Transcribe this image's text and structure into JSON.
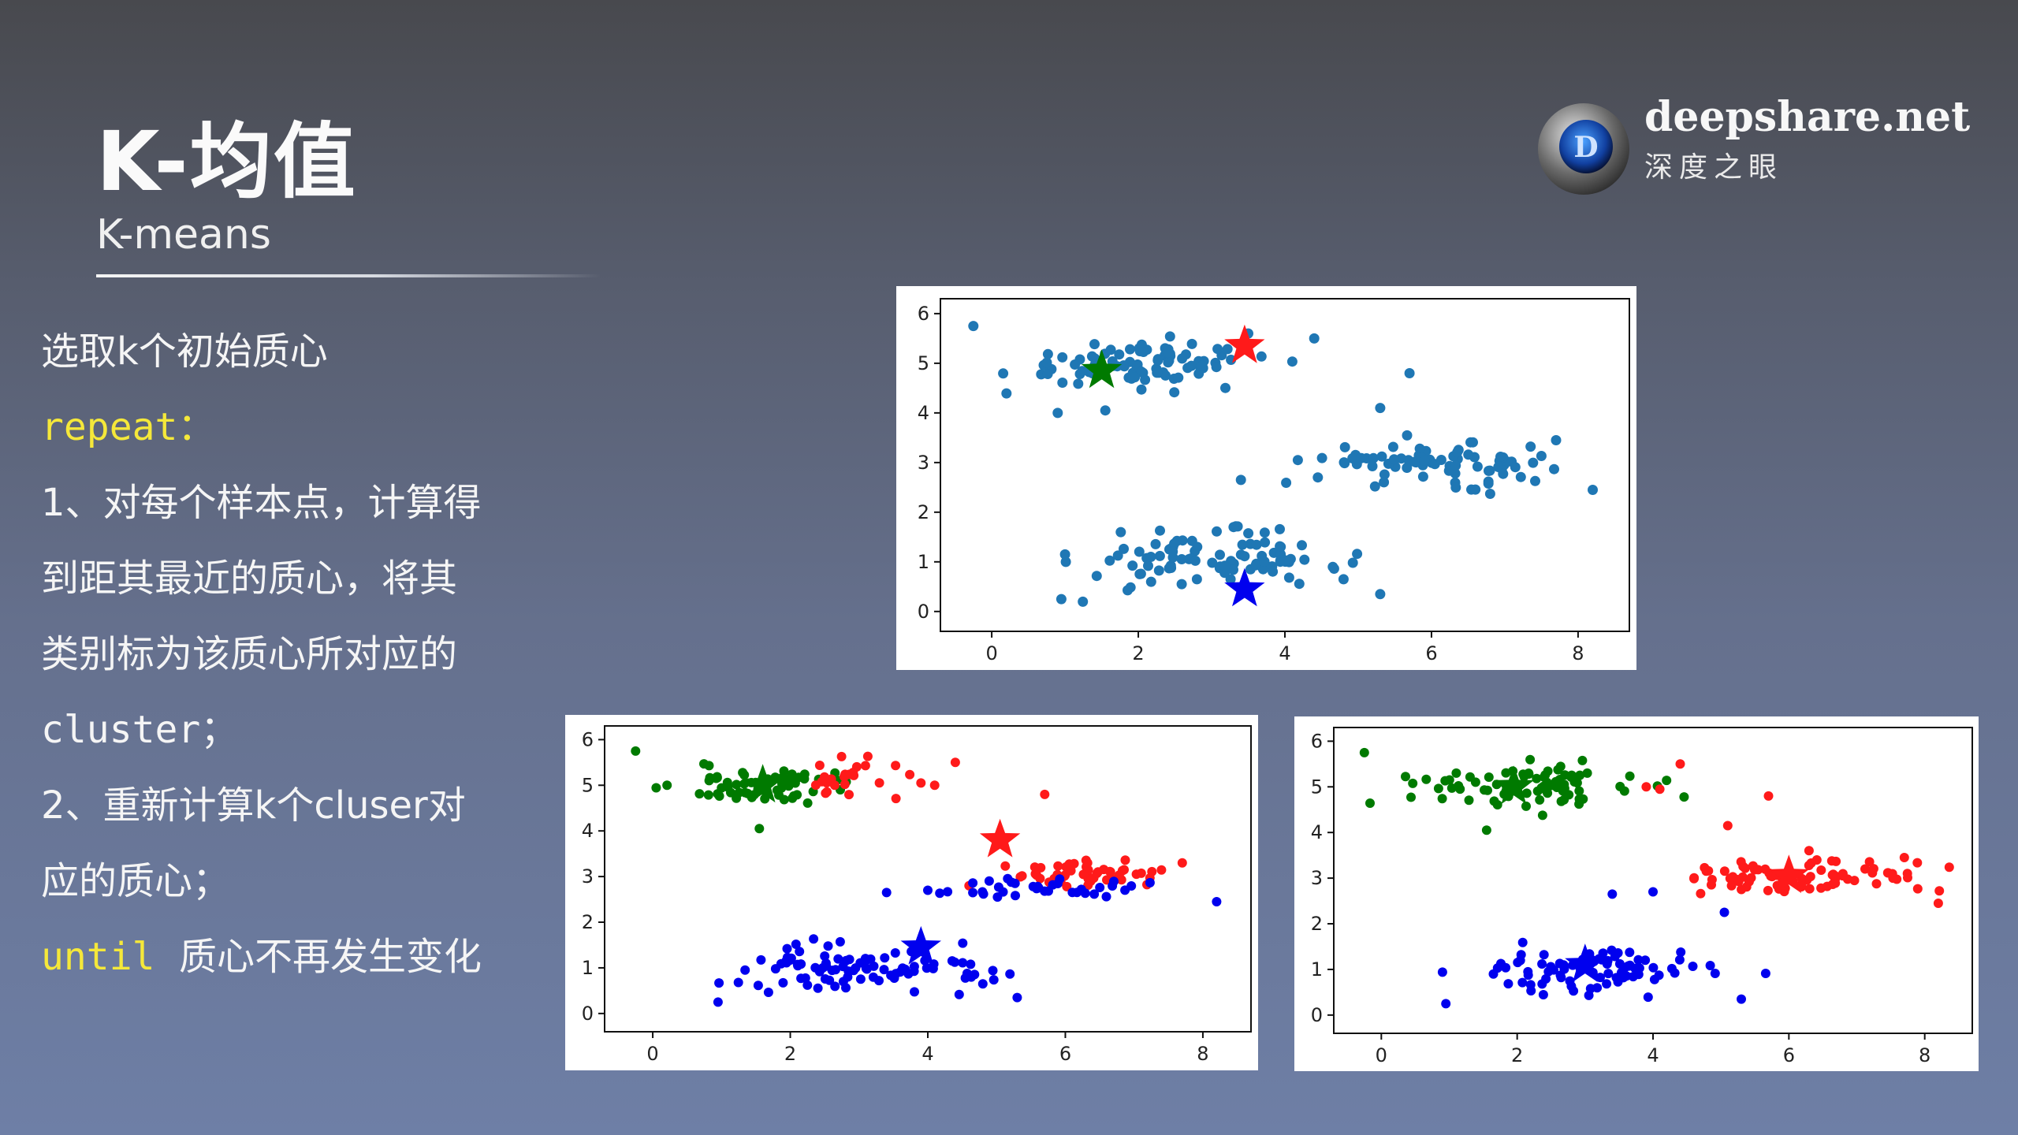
{
  "header": {
    "title": "K-均值",
    "subtitle": "K-means"
  },
  "logo": {
    "site": "deepshare.net",
    "tagline": "深度之眼"
  },
  "algorithm": {
    "step0": "选取k个初始质心",
    "repeat_kw": "repeat",
    "repeat_colon": "：",
    "step1_a": "1、对每个样本点，计算得",
    "step1_b": "到距其最近的质心，将其",
    "step1_c": "类别标为该质心所对应的",
    "step1_d": "cluster；",
    "step2_a": "2、重新计算k个cluser对",
    "step2_b": "应的质心；",
    "until_kw": "until",
    "until_text": "质心不再发生变化"
  },
  "colors": {
    "unassigned": "#1f77b4",
    "cluster_green": "#007a00",
    "cluster_red": "#ff1a1a",
    "cluster_blue": "#0000ee"
  },
  "chart_data": [
    {
      "id": "init",
      "type": "scatter",
      "description_role": "initial centroids",
      "xlim": [
        -0.7,
        8.7
      ],
      "ylim": [
        -0.4,
        6.3
      ],
      "xticks": [
        "0",
        "2",
        "4",
        "6",
        "8"
      ],
      "yticks": [
        "0",
        "1",
        "2",
        "3",
        "4",
        "5",
        "6"
      ],
      "clusters": [
        {
          "color": "unassigned",
          "center": [
            2.0,
            5.0
          ],
          "spread": [
            0.9,
            0.22
          ],
          "n": 90,
          "outliers": [
            [
              -0.25,
              5.75
            ],
            [
              0.9,
              4.0
            ],
            [
              1.55,
              4.05
            ],
            [
              4.4,
              5.5
            ],
            [
              5.7,
              4.8
            ],
            [
              3.5,
              5.6
            ]
          ]
        },
        {
          "color": "unassigned",
          "center": [
            6.1,
            3.0
          ],
          "spread": [
            0.8,
            0.2
          ],
          "n": 80,
          "outliers": [
            [
              3.4,
              2.65
            ],
            [
              8.2,
              2.45
            ],
            [
              5.3,
              4.1
            ],
            [
              7.7,
              3.45
            ],
            [
              4.45,
              2.7
            ]
          ]
        },
        {
          "color": "unassigned",
          "center": [
            3.0,
            1.0
          ],
          "spread": [
            0.9,
            0.28
          ],
          "n": 90,
          "outliers": [
            [
              0.95,
              0.25
            ],
            [
              5.3,
              0.35
            ],
            [
              4.8,
              0.65
            ],
            [
              1.0,
              1.15
            ],
            [
              3.3,
              1.7
            ]
          ]
        }
      ],
      "centroids": [
        {
          "color": "cluster_red",
          "x": 3.45,
          "y": 5.35
        },
        {
          "color": "cluster_green",
          "x": 1.5,
          "y": 4.85
        },
        {
          "color": "cluster_blue",
          "x": 3.45,
          "y": 0.45
        }
      ]
    },
    {
      "id": "iter1",
      "type": "scatter",
      "description_role": "after first assignment",
      "xlim": [
        -0.7,
        8.7
      ],
      "ylim": [
        -0.4,
        6.3
      ],
      "xticks": [
        "0",
        "2",
        "4",
        "6",
        "8"
      ],
      "yticks": [
        "0",
        "1",
        "2",
        "3",
        "4",
        "5",
        "6"
      ],
      "clusters": [
        {
          "color": "cluster_green",
          "center": [
            1.6,
            5.0
          ],
          "spread": [
            0.65,
            0.22
          ],
          "n": 70,
          "outliers": [
            [
              -0.25,
              5.75
            ],
            [
              1.55,
              4.05
            ]
          ]
        },
        {
          "color": "cluster_red",
          "center": [
            2.9,
            5.1
          ],
          "spread": [
            0.35,
            0.2
          ],
          "n": 25,
          "outliers": [
            [
              4.4,
              5.5
            ],
            [
              5.7,
              4.8
            ],
            [
              3.9,
              5.05
            ],
            [
              4.1,
              5.0
            ]
          ]
        },
        {
          "color": "cluster_red",
          "center": [
            6.4,
            3.05
          ],
          "spread": [
            0.55,
            0.15
          ],
          "n": 50,
          "outliers": [
            [
              4.6,
              2.8
            ],
            [
              7.7,
              3.3
            ]
          ]
        },
        {
          "color": "cluster_blue",
          "center": [
            5.9,
            2.75
          ],
          "spread": [
            0.7,
            0.12
          ],
          "n": 35,
          "outliers": [
            [
              3.4,
              2.65
            ],
            [
              8.2,
              2.45
            ],
            [
              4.0,
              2.7
            ]
          ]
        },
        {
          "color": "cluster_blue",
          "center": [
            3.0,
            1.0
          ],
          "spread": [
            0.9,
            0.28
          ],
          "n": 90,
          "outliers": [
            [
              0.95,
              0.25
            ],
            [
              5.3,
              0.35
            ],
            [
              4.8,
              0.65
            ]
          ]
        }
      ],
      "centroids": [
        {
          "color": "cluster_red",
          "x": 5.05,
          "y": 3.8
        },
        {
          "color": "cluster_green",
          "x": 1.6,
          "y": 5.0
        },
        {
          "color": "cluster_blue",
          "x": 3.9,
          "y": 1.45
        }
      ]
    },
    {
      "id": "final",
      "type": "scatter",
      "description_role": "converged",
      "xlim": [
        -0.7,
        8.7
      ],
      "ylim": [
        -0.4,
        6.3
      ],
      "xticks": [
        "0",
        "2",
        "4",
        "6",
        "8"
      ],
      "yticks": [
        "0",
        "1",
        "2",
        "3",
        "4",
        "5",
        "6"
      ],
      "clusters": [
        {
          "color": "cluster_green",
          "center": [
            2.0,
            5.0
          ],
          "spread": [
            0.85,
            0.22
          ],
          "n": 85,
          "outliers": [
            [
              -0.25,
              5.75
            ],
            [
              1.55,
              4.05
            ]
          ]
        },
        {
          "color": "cluster_red",
          "center": [
            6.1,
            3.0
          ],
          "spread": [
            0.8,
            0.2
          ],
          "n": 80,
          "outliers": [
            [
              8.2,
              2.45
            ],
            [
              7.7,
              3.45
            ],
            [
              5.7,
              4.8
            ],
            [
              5.1,
              4.15
            ],
            [
              4.4,
              5.5
            ],
            [
              3.9,
              5.0
            ],
            [
              4.1,
              4.95
            ]
          ]
        },
        {
          "color": "cluster_blue",
          "center": [
            3.0,
            1.0
          ],
          "spread": [
            0.9,
            0.28
          ],
          "n": 90,
          "outliers": [
            [
              0.95,
              0.25
            ],
            [
              5.3,
              0.35
            ],
            [
              3.4,
              2.65
            ],
            [
              4.0,
              2.7
            ],
            [
              5.05,
              2.25
            ]
          ]
        }
      ],
      "centroids": [
        {
          "color": "cluster_green",
          "x": 1.95,
          "y": 5.0
        },
        {
          "color": "cluster_red",
          "x": 6.0,
          "y": 3.05
        },
        {
          "color": "cluster_blue",
          "x": 3.0,
          "y": 1.1
        }
      ]
    }
  ]
}
